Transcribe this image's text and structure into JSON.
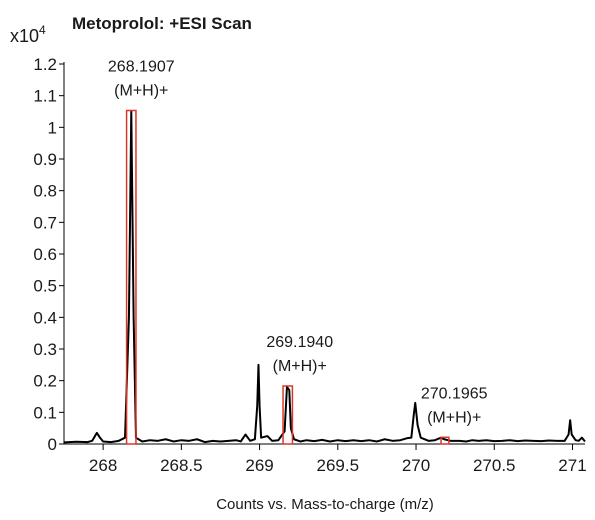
{
  "chart_data": {
    "type": "line",
    "title": "Metoprolol: +ESI Scan",
    "y_multiplier": "x10",
    "y_multiplier_exponent": "4",
    "xlabel": "Counts vs. Mass-to-charge (m/z)",
    "ylabel": "",
    "xlim": [
      267.75,
      271.08
    ],
    "ylim": [
      0,
      1.2
    ],
    "x_ticks": [
      268,
      268.5,
      269,
      269.5,
      270,
      270.5,
      271
    ],
    "x_tick_labels": [
      "268",
      "268.5",
      "269",
      "269.5",
      "270",
      "270.5",
      "271"
    ],
    "y_ticks": [
      0,
      0.1,
      0.2,
      0.3,
      0.4,
      0.5,
      0.6,
      0.7,
      0.8,
      0.9,
      1,
      1.1,
      1.2
    ],
    "y_tick_labels": [
      "0",
      "0.1",
      "0.2",
      "0.3",
      "0.4",
      "0.5",
      "0.6",
      "0.7",
      "0.8",
      "0.9",
      "1",
      "1.1",
      "1.2"
    ],
    "grid": false,
    "series": [
      {
        "line_color": "#000000",
        "points": [
          [
            267.75,
            0.005
          ],
          [
            267.83,
            0.007
          ],
          [
            267.9,
            0.006
          ],
          [
            267.93,
            0.01
          ],
          [
            267.96,
            0.035
          ],
          [
            267.98,
            0.02
          ],
          [
            268.0,
            0.008
          ],
          [
            268.05,
            0.006
          ],
          [
            268.1,
            0.01
          ],
          [
            268.14,
            0.02
          ],
          [
            268.165,
            0.4
          ],
          [
            268.18,
            1.05
          ],
          [
            268.195,
            0.4
          ],
          [
            268.21,
            0.02
          ],
          [
            268.25,
            0.008
          ],
          [
            268.3,
            0.012
          ],
          [
            268.35,
            0.01
          ],
          [
            268.4,
            0.015
          ],
          [
            268.45,
            0.008
          ],
          [
            268.5,
            0.012
          ],
          [
            268.55,
            0.01
          ],
          [
            268.6,
            0.015
          ],
          [
            268.65,
            0.006
          ],
          [
            268.7,
            0.01
          ],
          [
            268.75,
            0.008
          ],
          [
            268.8,
            0.01
          ],
          [
            268.85,
            0.012
          ],
          [
            268.88,
            0.008
          ],
          [
            268.91,
            0.03
          ],
          [
            268.94,
            0.01
          ],
          [
            268.97,
            0.015
          ],
          [
            268.985,
            0.12
          ],
          [
            268.993,
            0.25
          ],
          [
            269.0,
            0.12
          ],
          [
            269.01,
            0.02
          ],
          [
            269.05,
            0.025
          ],
          [
            269.08,
            0.01
          ],
          [
            269.12,
            0.012
          ],
          [
            269.16,
            0.04
          ],
          [
            269.175,
            0.18
          ],
          [
            269.19,
            0.17
          ],
          [
            269.2,
            0.05
          ],
          [
            269.22,
            0.015
          ],
          [
            269.26,
            0.008
          ],
          [
            269.3,
            0.012
          ],
          [
            269.35,
            0.009
          ],
          [
            269.4,
            0.013
          ],
          [
            269.45,
            0.008
          ],
          [
            269.5,
            0.012
          ],
          [
            269.55,
            0.009
          ],
          [
            269.6,
            0.012
          ],
          [
            269.65,
            0.009
          ],
          [
            269.7,
            0.012
          ],
          [
            269.75,
            0.008
          ],
          [
            269.8,
            0.015
          ],
          [
            269.85,
            0.01
          ],
          [
            269.9,
            0.012
          ],
          [
            269.94,
            0.018
          ],
          [
            269.97,
            0.02
          ],
          [
            269.985,
            0.09
          ],
          [
            269.995,
            0.13
          ],
          [
            270.01,
            0.06
          ],
          [
            270.03,
            0.02
          ],
          [
            270.08,
            0.01
          ],
          [
            270.12,
            0.012
          ],
          [
            270.16,
            0.02
          ],
          [
            270.18,
            0.015
          ],
          [
            270.22,
            0.01
          ],
          [
            270.28,
            0.01
          ],
          [
            270.32,
            0.008
          ],
          [
            270.36,
            0.012
          ],
          [
            270.4,
            0.01
          ],
          [
            270.45,
            0.012
          ],
          [
            270.5,
            0.009
          ],
          [
            270.55,
            0.01
          ],
          [
            270.6,
            0.012
          ],
          [
            270.65,
            0.009
          ],
          [
            270.7,
            0.011
          ],
          [
            270.75,
            0.01
          ],
          [
            270.8,
            0.009
          ],
          [
            270.85,
            0.011
          ],
          [
            270.9,
            0.01
          ],
          [
            270.95,
            0.01
          ],
          [
            270.975,
            0.03
          ],
          [
            270.985,
            0.075
          ],
          [
            270.995,
            0.03
          ],
          [
            271.02,
            0.012
          ],
          [
            271.04,
            0.01
          ],
          [
            271.06,
            0.02
          ],
          [
            271.08,
            0.008
          ]
        ]
      }
    ],
    "annotations": [
      {
        "mz": "268.1907",
        "ion": "(M+H)+",
        "x": 268.18,
        "y": 1.05
      },
      {
        "mz": "269.1940",
        "ion": "(M+H)+",
        "x": 269.18,
        "y": 0.18
      },
      {
        "mz": "270.1965",
        "ion": "(M+H)+",
        "x": 270.18,
        "y": 0.018
      }
    ],
    "highlight_boxes": [
      {
        "x_start": 268.15,
        "x_end": 268.21,
        "y_top": 1.05
      },
      {
        "x_start": 269.15,
        "x_end": 269.21,
        "y_top": 0.18
      },
      {
        "x_start": 270.16,
        "x_end": 270.21,
        "y_top": 0.018
      }
    ],
    "highlight_color": "#d9372b"
  }
}
